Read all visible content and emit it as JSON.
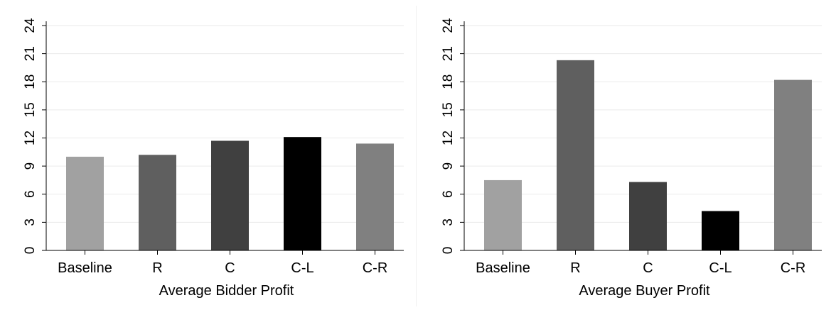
{
  "chart_data": [
    {
      "type": "bar",
      "categories": [
        "Baseline",
        "R",
        "C",
        "C-L",
        "C-R"
      ],
      "values": [
        10.0,
        10.2,
        11.7,
        12.1,
        11.4
      ],
      "xlabel": "Average Bidder Profit",
      "ylabel": "",
      "ylim": [
        0,
        24
      ],
      "yticks": [
        0,
        3,
        6,
        9,
        12,
        15,
        18,
        21,
        24
      ],
      "grid": true,
      "colors": [
        "#a1a1a1",
        "#5f5f5f",
        "#404040",
        "#000000",
        "#808080"
      ]
    },
    {
      "type": "bar",
      "categories": [
        "Baseline",
        "R",
        "C",
        "C-L",
        "C-R"
      ],
      "values": [
        7.5,
        20.3,
        7.3,
        4.2,
        18.2
      ],
      "xlabel": "Average Buyer Profit",
      "ylabel": "",
      "ylim": [
        0,
        24
      ],
      "yticks": [
        0,
        3,
        6,
        9,
        12,
        15,
        18,
        21,
        24
      ],
      "grid": true,
      "colors": [
        "#a1a1a1",
        "#5f5f5f",
        "#404040",
        "#000000",
        "#808080"
      ]
    }
  ]
}
